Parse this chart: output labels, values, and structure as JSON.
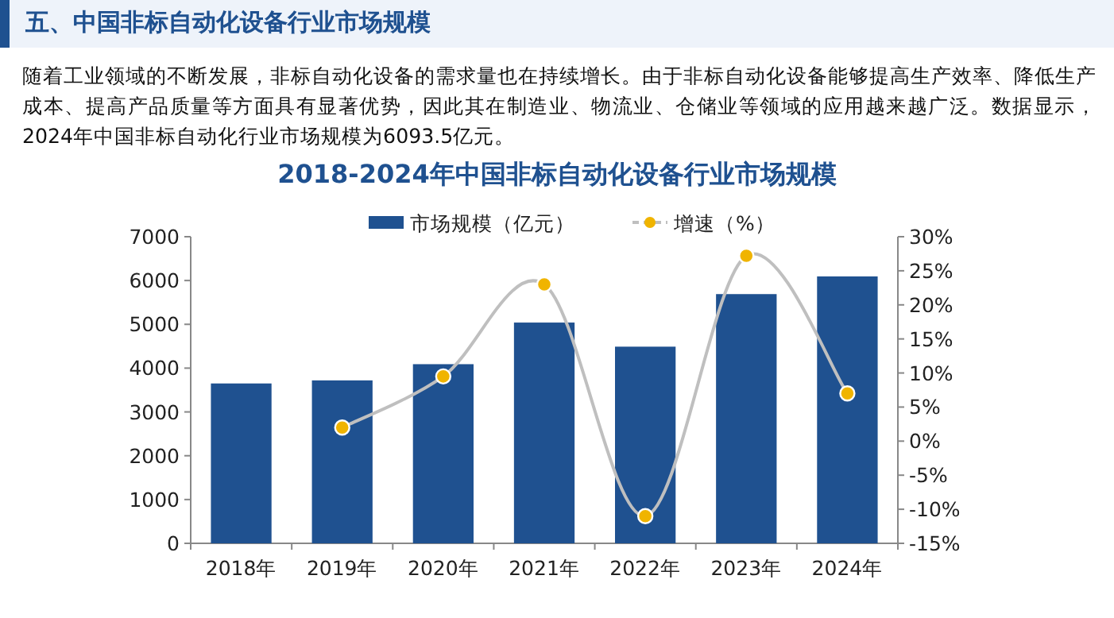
{
  "chart_data": {
    "type": "bar",
    "title": "2018-2024年中国非标自动化设备行业市场规模",
    "annotations": [
      "五、中国非标自动化设备行业市场规模",
      "随着工业领域的不断发展，非标自动化设备的需求量也在持续增长。由于非标自动化设备能够提高生产效率、降低生产成本、提高产品质量等方面具有显著优势，因此其在制造业、物流业、仓储业等领域的应用越来越广泛。数据显示，2024年中国非标自动化行业市场规模为6093.5亿元。"
    ],
    "categories": [
      "2018年",
      "2019年",
      "2020年",
      "2021年",
      "2022年",
      "2023年",
      "2024年"
    ],
    "series": [
      {
        "name": "市场规模（亿元）",
        "color": "#1f5190",
        "values": [
          3650,
          3720,
          4090,
          5040,
          4490,
          5690,
          6093.5
        ]
      },
      {
        "name": "增速（%）",
        "type": "line",
        "axis": "y2",
        "color": "#bfbfbf",
        "values": [
          null,
          2,
          9.5,
          23,
          -11,
          27.2,
          7
        ]
      }
    ],
    "ylim": [
      0,
      7000
    ],
    "yticks": [
      0,
      1000,
      2000,
      3000,
      4000,
      5000,
      6000,
      7000
    ],
    "y2lim": [
      -15,
      30
    ],
    "y2ticks": [
      {
        "value": -15,
        "label": "-15%"
      },
      {
        "value": -10,
        "label": "-10%"
      },
      {
        "value": -5,
        "label": "-5%"
      },
      {
        "value": 0,
        "label": "0%"
      },
      {
        "value": 5,
        "label": "5%"
      },
      {
        "value": 10,
        "label": "10%"
      },
      {
        "value": 15,
        "label": "15%"
      },
      {
        "value": 20,
        "label": "20%"
      },
      {
        "value": 25,
        "label": "25%"
      },
      {
        "value": 30,
        "label": "30%"
      }
    ],
    "legend": "top",
    "grid": false,
    "marker": "circle"
  }
}
